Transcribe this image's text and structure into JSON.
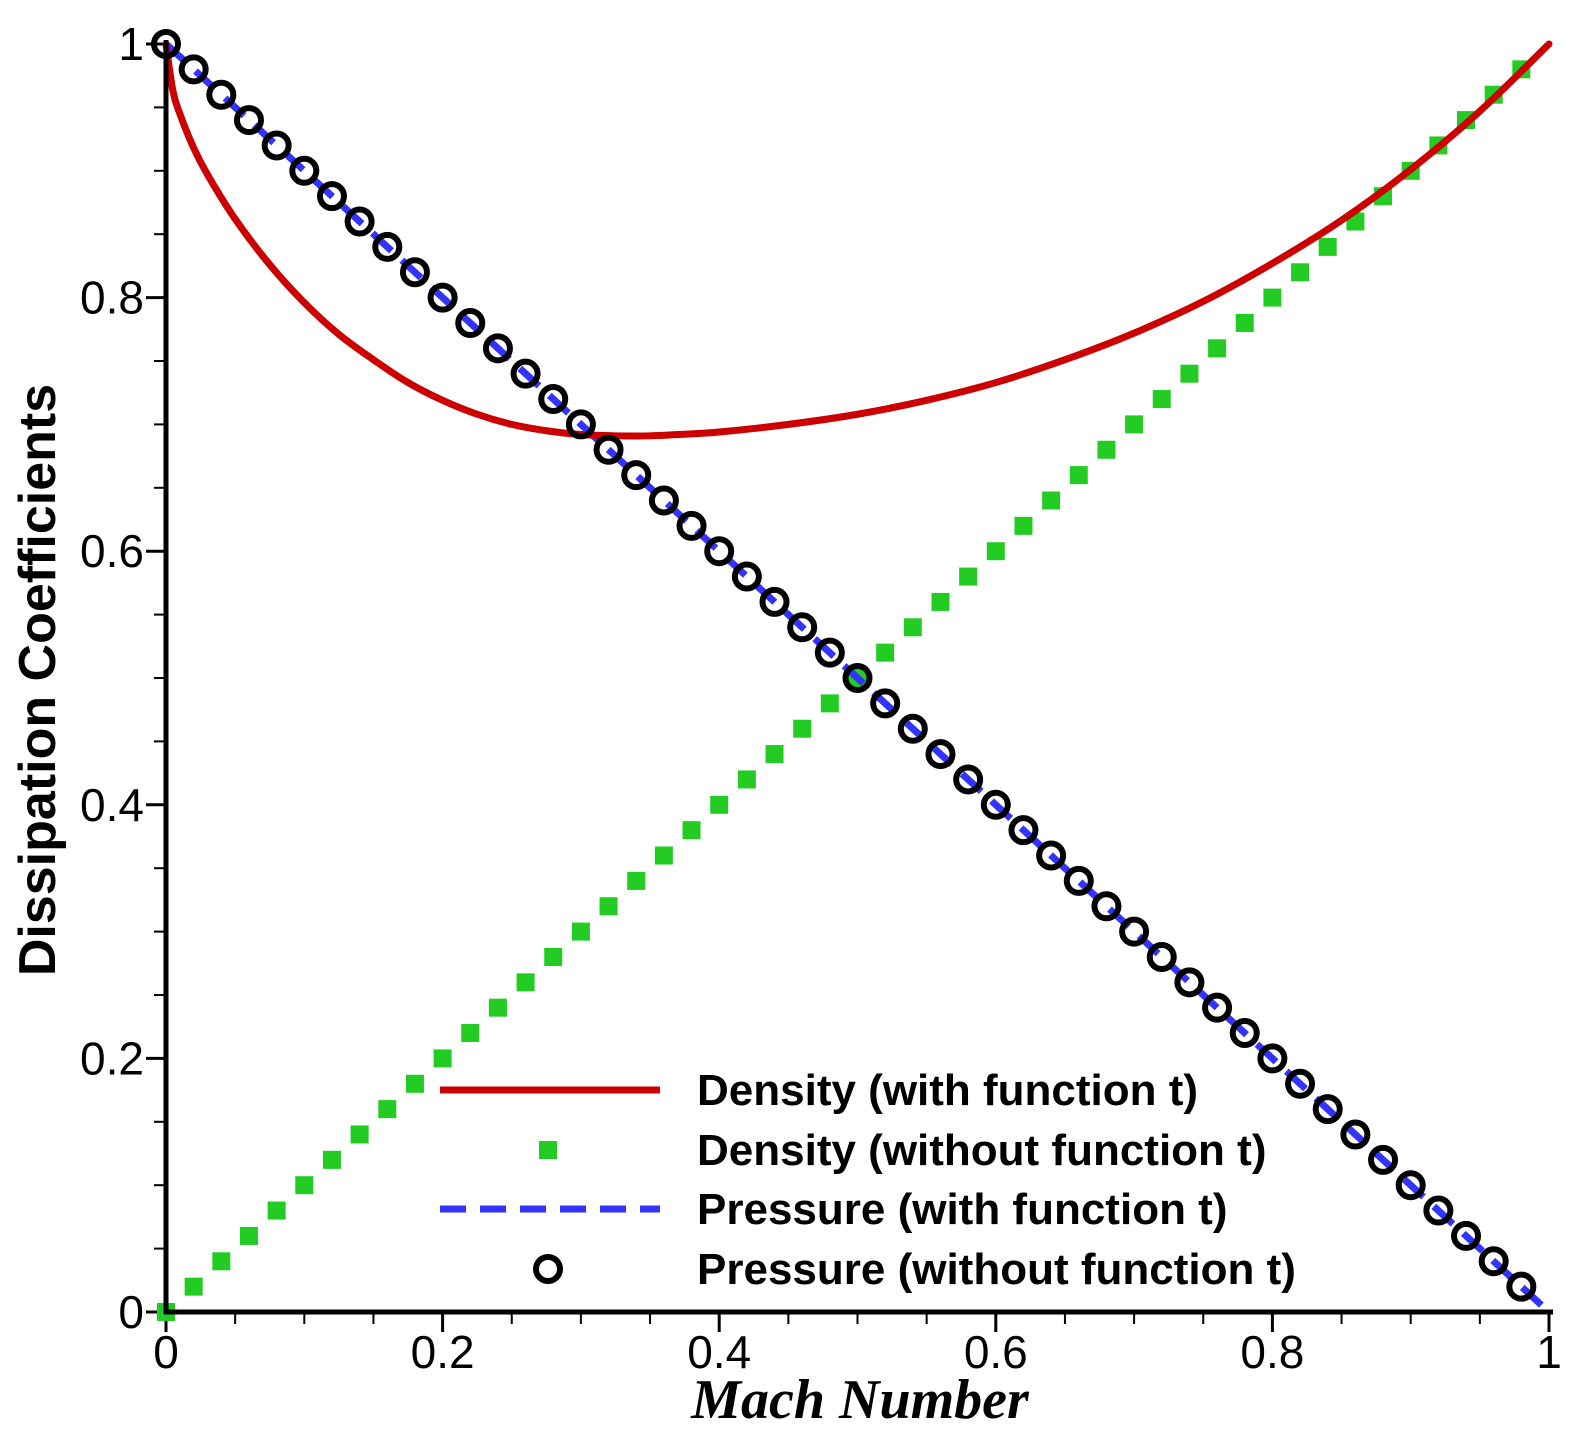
{
  "chart_data": {
    "type": "line",
    "title": "",
    "xlabel": "Mach Number",
    "ylabel": "Dissipation Coefficients",
    "xlim": [
      0,
      1
    ],
    "ylim": [
      0,
      1
    ],
    "grid": false,
    "legend_position": "bottom-right",
    "x_ticks": [
      {
        "value": 0,
        "label": "0"
      },
      {
        "value": 0.2,
        "label": "0.2"
      },
      {
        "value": 0.4,
        "label": "0.4"
      },
      {
        "value": 0.6,
        "label": "0.6"
      },
      {
        "value": 0.8,
        "label": "0.8"
      },
      {
        "value": 1,
        "label": "1"
      }
    ],
    "y_ticks": [
      {
        "value": 0,
        "label": "0"
      },
      {
        "value": 0.2,
        "label": "0.2"
      },
      {
        "value": 0.4,
        "label": "0.4"
      },
      {
        "value": 0.6,
        "label": "0.6"
      },
      {
        "value": 0.8,
        "label": "0.8"
      },
      {
        "value": 1,
        "label": "1"
      }
    ],
    "series": [
      {
        "name": "Density (with function t)",
        "style": "solid-line",
        "color": "#cc0000",
        "x": [
          0,
          0.005,
          0.01,
          0.02,
          0.03,
          0.05,
          0.075,
          0.1,
          0.125,
          0.15,
          0.175,
          0.2,
          0.225,
          0.25,
          0.275,
          0.3,
          0.325,
          0.35,
          0.37,
          0.4,
          0.45,
          0.5,
          0.55,
          0.6,
          0.65,
          0.7,
          0.75,
          0.8,
          0.85,
          0.9,
          0.95,
          1.0
        ],
        "y": [
          1.0,
          0.963,
          0.945,
          0.918,
          0.897,
          0.862,
          0.826,
          0.796,
          0.771,
          0.751,
          0.733,
          0.719,
          0.708,
          0.7,
          0.695,
          0.692,
          0.691,
          0.691,
          0.692,
          0.694,
          0.7,
          0.708,
          0.719,
          0.733,
          0.751,
          0.772,
          0.797,
          0.827,
          0.861,
          0.901,
          0.947,
          1.0
        ]
      },
      {
        "name": "Density (without function t)",
        "style": "square-markers",
        "color": "#22cc22",
        "x": [
          0,
          0.02,
          0.04,
          0.06,
          0.08,
          0.1,
          0.12,
          0.14,
          0.16,
          0.18,
          0.2,
          0.22,
          0.24,
          0.26,
          0.28,
          0.3,
          0.32,
          0.34,
          0.36,
          0.38,
          0.4,
          0.42,
          0.44,
          0.46,
          0.48,
          0.5,
          0.52,
          0.54,
          0.56,
          0.58,
          0.6,
          0.62,
          0.64,
          0.66,
          0.68,
          0.7,
          0.72,
          0.74,
          0.76,
          0.78,
          0.8,
          0.82,
          0.84,
          0.86,
          0.88,
          0.9,
          0.92,
          0.94,
          0.96,
          0.98
        ],
        "y": [
          0,
          0.02,
          0.04,
          0.06,
          0.08,
          0.1,
          0.12,
          0.14,
          0.16,
          0.18,
          0.2,
          0.22,
          0.24,
          0.26,
          0.28,
          0.3,
          0.32,
          0.34,
          0.36,
          0.38,
          0.4,
          0.42,
          0.44,
          0.46,
          0.48,
          0.5,
          0.52,
          0.54,
          0.56,
          0.58,
          0.6,
          0.62,
          0.64,
          0.66,
          0.68,
          0.7,
          0.72,
          0.74,
          0.76,
          0.78,
          0.8,
          0.82,
          0.84,
          0.86,
          0.88,
          0.9,
          0.92,
          0.94,
          0.96,
          0.98
        ]
      },
      {
        "name": "Pressure (with function t)",
        "style": "dashed-line",
        "color": "#3333ff",
        "x": [
          0,
          1
        ],
        "y": [
          1,
          0
        ]
      },
      {
        "name": "Pressure (without function t)",
        "style": "circle-markers",
        "color": "#000000",
        "x": [
          0,
          0.02,
          0.04,
          0.06,
          0.08,
          0.1,
          0.12,
          0.14,
          0.16,
          0.18,
          0.2,
          0.22,
          0.24,
          0.26,
          0.28,
          0.3,
          0.32,
          0.34,
          0.36,
          0.38,
          0.4,
          0.42,
          0.44,
          0.46,
          0.48,
          0.5,
          0.52,
          0.54,
          0.56,
          0.58,
          0.6,
          0.62,
          0.64,
          0.66,
          0.68,
          0.7,
          0.72,
          0.74,
          0.76,
          0.78,
          0.8,
          0.82,
          0.84,
          0.86,
          0.88,
          0.9,
          0.92,
          0.94,
          0.96,
          0.98
        ],
        "y": [
          1.0,
          0.98,
          0.96,
          0.94,
          0.92,
          0.9,
          0.88,
          0.86,
          0.84,
          0.82,
          0.8,
          0.78,
          0.76,
          0.74,
          0.72,
          0.7,
          0.68,
          0.66,
          0.64,
          0.62,
          0.6,
          0.58,
          0.56,
          0.54,
          0.52,
          0.5,
          0.48,
          0.46,
          0.44,
          0.42,
          0.4,
          0.38,
          0.36,
          0.34,
          0.32,
          0.3,
          0.28,
          0.26,
          0.24,
          0.22,
          0.2,
          0.18,
          0.16,
          0.14,
          0.12,
          0.1,
          0.08,
          0.06,
          0.04,
          0.02
        ]
      }
    ]
  }
}
